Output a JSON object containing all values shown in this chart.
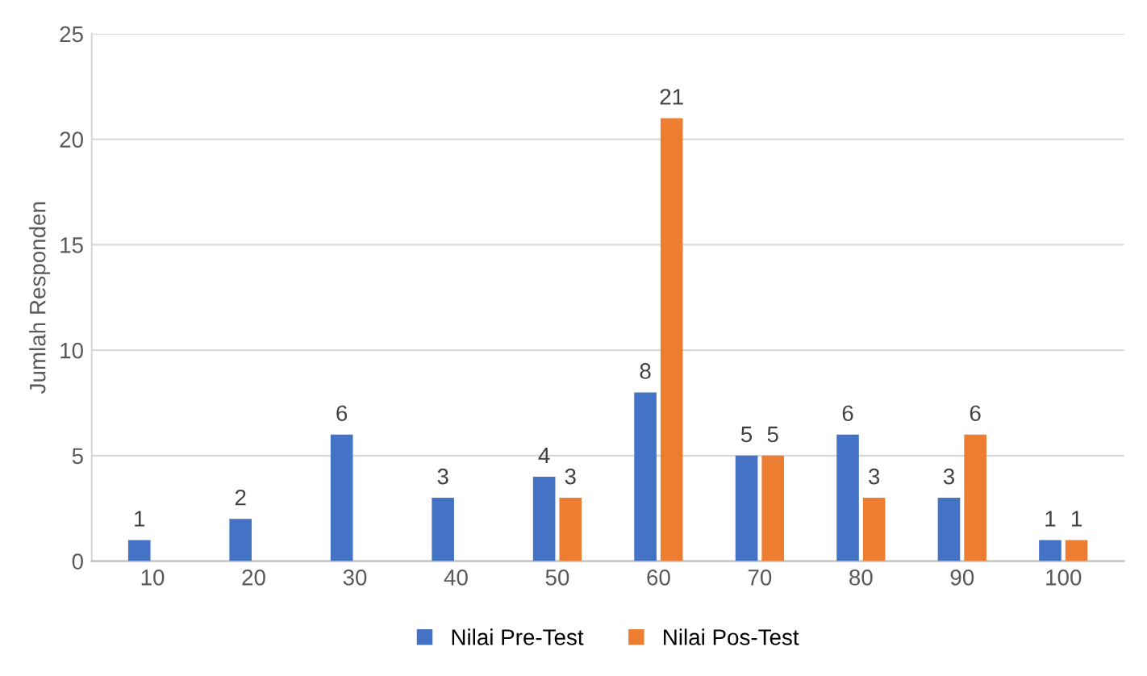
{
  "chart_data": {
    "type": "bar",
    "ylabel": "Jumlah Responden",
    "categories": [
      "10",
      "20",
      "30",
      "40",
      "50",
      "60",
      "70",
      "80",
      "90",
      "100"
    ],
    "series": [
      {
        "name": "Nilai Pre-Test",
        "color": "#4472c4",
        "values": [
          1,
          2,
          6,
          3,
          4,
          8,
          5,
          6,
          3,
          1
        ]
      },
      {
        "name": "Nilai Pos-Test",
        "color": "#ed7d31",
        "values": [
          null,
          null,
          null,
          null,
          3,
          21,
          5,
          3,
          6,
          1
        ]
      }
    ],
    "ylim": [
      0,
      25
    ],
    "yticks": [
      0,
      5,
      10,
      15,
      20,
      25
    ],
    "grid": "y",
    "legend": "bottom",
    "data_labels": true
  }
}
